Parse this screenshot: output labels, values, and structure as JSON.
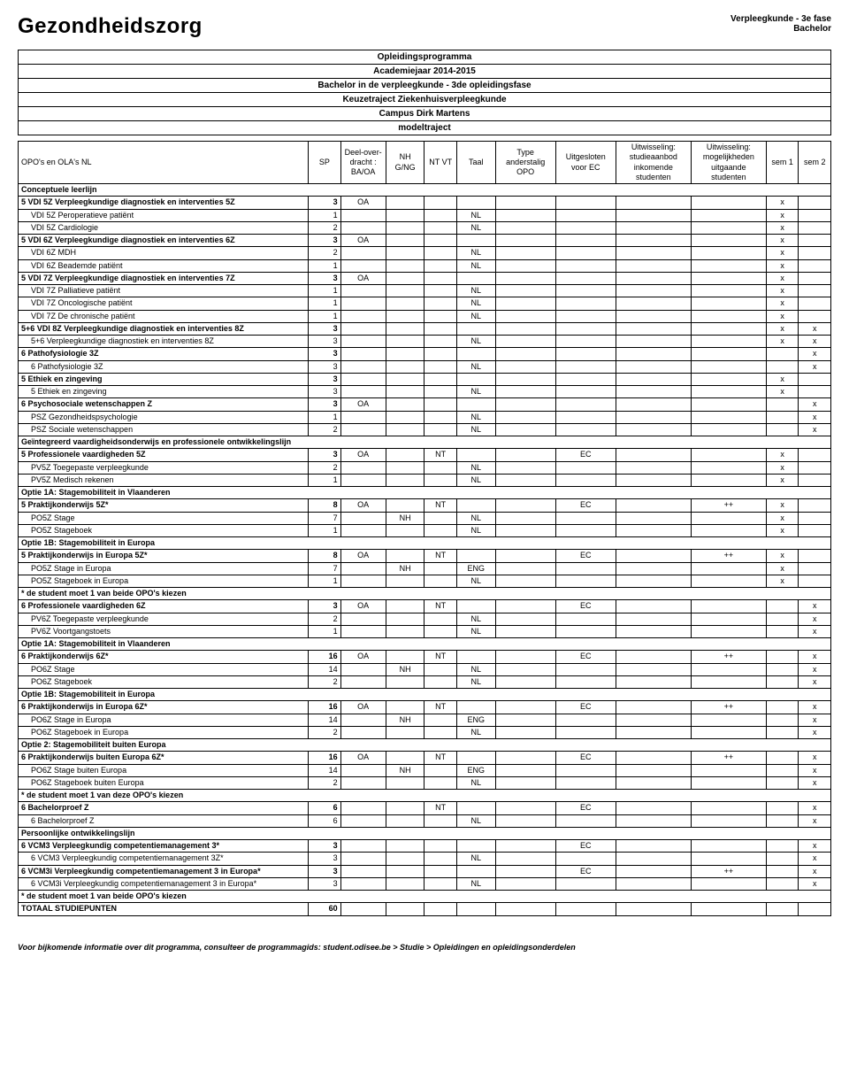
{
  "header": {
    "title": "Gezondheidszorg",
    "subtitle1": "Verpleegkunde - 3e fase",
    "subtitle2": "Bachelor"
  },
  "program": [
    "Opleidingsprogramma",
    "Academiejaar 2014-2015",
    "Bachelor in de verpleegkunde - 3de opleidingsfase",
    "Keuzetraject Ziekenhuisverpleegkunde",
    "Campus Dirk Martens",
    "modeltraject"
  ],
  "columns": [
    "OPO's en OLA's NL",
    "SP",
    "Deel-over-dracht : BA/OA",
    "NH G/NG",
    "NT VT",
    "Taal",
    "Type anderstalig OPO",
    "Uitgesloten voor EC",
    "Uitwisseling: studieaanbod inkomende studenten",
    "Uitwisseling: mogelijkheden uitgaande studenten",
    "sem 1",
    "sem 2"
  ],
  "rows": [
    {
      "type": "section",
      "name": "Conceptuele leerlijn"
    },
    {
      "type": "parent",
      "name": "5 VDI 5Z Verpleegkundige diagnostiek en interventies 5Z",
      "sp": "3",
      "baoa": "OA",
      "s1": "x"
    },
    {
      "type": "child",
      "name": "VDI 5Z Peroperatieve patiënt",
      "sp": "1",
      "taal": "NL",
      "s1": "x"
    },
    {
      "type": "child",
      "name": "VDI 5Z Cardiologie",
      "sp": "2",
      "taal": "NL",
      "s1": "x"
    },
    {
      "type": "parent",
      "name": "5 VDI 6Z Verpleegkundige diagnostiek en interventies 6Z",
      "sp": "3",
      "baoa": "OA",
      "s1": "x"
    },
    {
      "type": "child",
      "name": "VDI 6Z MDH",
      "sp": "2",
      "taal": "NL",
      "s1": "x"
    },
    {
      "type": "child",
      "name": "VDI 6Z Beademde patiënt",
      "sp": "1",
      "taal": "NL",
      "s1": "x"
    },
    {
      "type": "parent",
      "name": "5 VDI 7Z Verpleegkundige diagnostiek en interventies 7Z",
      "sp": "3",
      "baoa": "OA",
      "s1": "x"
    },
    {
      "type": "child",
      "name": "VDI 7Z Palliatieve patiënt",
      "sp": "1",
      "taal": "NL",
      "s1": "x"
    },
    {
      "type": "child",
      "name": "VDI 7Z Oncologische patiënt",
      "sp": "1",
      "taal": "NL",
      "s1": "x"
    },
    {
      "type": "child",
      "name": "VDI 7Z De chronische patiënt",
      "sp": "1",
      "taal": "NL",
      "s1": "x"
    },
    {
      "type": "parent",
      "name": "5+6 VDI 8Z Verpleegkundige diagnostiek en interventies 8Z",
      "sp": "3",
      "s1": "x",
      "s2": "x"
    },
    {
      "type": "child",
      "name": "5+6 Verpleegkundige diagnostiek en interventies 8Z",
      "sp": "3",
      "taal": "NL",
      "s1": "x",
      "s2": "x"
    },
    {
      "type": "parent",
      "name": "6 Pathofysiologie 3Z",
      "sp": "3",
      "s2": "x"
    },
    {
      "type": "child",
      "name": "6 Pathofysiologie 3Z",
      "sp": "3",
      "taal": "NL",
      "s2": "x"
    },
    {
      "type": "parent",
      "name": "5 Ethiek en zingeving",
      "sp": "3",
      "s1": "x"
    },
    {
      "type": "child",
      "name": "5 Ethiek en zingeving",
      "sp": "3",
      "taal": "NL",
      "s1": "x"
    },
    {
      "type": "parent",
      "name": "6 Psychosociale wetenschappen Z",
      "sp": "3",
      "baoa": "OA",
      "s2": "x"
    },
    {
      "type": "child",
      "name": "PSZ Gezondheidspsychologie",
      "sp": "1",
      "taal": "NL",
      "s2": "x"
    },
    {
      "type": "child",
      "name": "PSZ Sociale wetenschappen",
      "sp": "2",
      "taal": "NL",
      "s2": "x"
    },
    {
      "type": "section",
      "name": "Geïntegreerd vaardigheidsonderwijs en professionele ontwikkelingslijn"
    },
    {
      "type": "parent",
      "name": "5 Professionele vaardigheden 5Z",
      "sp": "3",
      "baoa": "OA",
      "nt": "NT",
      "ec": "EC",
      "s1": "x"
    },
    {
      "type": "child",
      "name": "PV5Z Toegepaste verpleegkunde",
      "sp": "2",
      "taal": "NL",
      "s1": "x"
    },
    {
      "type": "child",
      "name": "PV5Z Medisch rekenen",
      "sp": "1",
      "taal": "NL",
      "s1": "x"
    },
    {
      "type": "section",
      "name": "Optie 1A: Stagemobiliteit in Vlaanderen"
    },
    {
      "type": "parent",
      "name": "5 Praktijkonderwijs 5Z*",
      "sp": "8",
      "baoa": "OA",
      "nt": "NT",
      "ec": "EC",
      "out": "++",
      "s1": "x"
    },
    {
      "type": "child",
      "name": "PO5Z Stage",
      "sp": "7",
      "nh": "NH",
      "taal": "NL",
      "s1": "x"
    },
    {
      "type": "child",
      "name": "PO5Z Stageboek",
      "sp": "1",
      "taal": "NL",
      "s1": "x"
    },
    {
      "type": "section",
      "name": "Optie 1B: Stagemobiliteit in Europa"
    },
    {
      "type": "parent",
      "name": "5 Praktijkonderwijs in Europa 5Z*",
      "sp": "8",
      "baoa": "OA",
      "nt": "NT",
      "ec": "EC",
      "out": "++",
      "s1": "x"
    },
    {
      "type": "child",
      "name": "PO5Z Stage in Europa",
      "sp": "7",
      "nh": "NH",
      "taal": "ENG",
      "s1": "x"
    },
    {
      "type": "child",
      "name": "PO5Z Stageboek in Europa",
      "sp": "1",
      "taal": "NL",
      "s1": "x"
    },
    {
      "type": "section",
      "name": "* de student moet 1 van beide OPO's kiezen"
    },
    {
      "type": "parent",
      "name": "6 Professionele vaardigheden 6Z",
      "sp": "3",
      "baoa": "OA",
      "nt": "NT",
      "ec": "EC",
      "s2": "x"
    },
    {
      "type": "child",
      "name": "PV6Z Toegepaste verpleegkunde",
      "sp": "2",
      "taal": "NL",
      "s2": "x"
    },
    {
      "type": "child",
      "name": "PV6Z Voortgangstoets",
      "sp": "1",
      "taal": "NL",
      "s2": "x"
    },
    {
      "type": "section",
      "name": "Optie 1A: Stagemobiliteit in Vlaanderen"
    },
    {
      "type": "parent",
      "name": "6 Praktijkonderwijs 6Z*",
      "sp": "16",
      "baoa": "OA",
      "nt": "NT",
      "ec": "EC",
      "out": "++",
      "s2": "x"
    },
    {
      "type": "child",
      "name": "PO6Z Stage",
      "sp": "14",
      "nh": "NH",
      "taal": "NL",
      "s2": "x"
    },
    {
      "type": "child",
      "name": "PO6Z Stageboek",
      "sp": "2",
      "taal": "NL",
      "s2": "x"
    },
    {
      "type": "section",
      "name": "Optie 1B: Stagemobiliteit in Europa"
    },
    {
      "type": "parent",
      "name": "6 Praktijkonderwijs in Europa 6Z*",
      "sp": "16",
      "baoa": "OA",
      "nt": "NT",
      "ec": "EC",
      "out": "++",
      "s2": "x"
    },
    {
      "type": "child",
      "name": "PO6Z Stage in Europa",
      "sp": "14",
      "nh": "NH",
      "taal": "ENG",
      "s2": "x"
    },
    {
      "type": "child",
      "name": "PO6Z Stageboek in Europa",
      "sp": "2",
      "taal": "NL",
      "s2": "x"
    },
    {
      "type": "section",
      "name": "Optie 2: Stagemobiliteit buiten Europa"
    },
    {
      "type": "parent",
      "name": "6 Praktijkonderwijs buiten Europa 6Z*",
      "sp": "16",
      "baoa": "OA",
      "nt": "NT",
      "ec": "EC",
      "out": "++",
      "s2": "x"
    },
    {
      "type": "child",
      "name": "PO6Z Stage buiten Europa",
      "sp": "14",
      "nh": "NH",
      "taal": "ENG",
      "s2": "x"
    },
    {
      "type": "child",
      "name": "PO6Z Stageboek buiten Europa",
      "sp": "2",
      "taal": "NL",
      "s2": "x"
    },
    {
      "type": "section",
      "name": "* de student moet 1 van deze OPO's kiezen"
    },
    {
      "type": "parent",
      "name": "6 Bachelorproef Z",
      "sp": "6",
      "nt": "NT",
      "ec": "EC",
      "s2": "x"
    },
    {
      "type": "child",
      "name": "6 Bachelorproef Z",
      "sp": "6",
      "taal": "NL",
      "s2": "x"
    },
    {
      "type": "section",
      "name": "Persoonlijke ontwikkelingslijn"
    },
    {
      "type": "parent",
      "name": "6 VCM3 Verpleegkundig competentiemanagement 3*",
      "sp": "3",
      "ec": "EC",
      "s2": "x"
    },
    {
      "type": "child",
      "name": "6 VCM3 Verpleegkundig competentiemanagement 3Z*",
      "sp": "3",
      "taal": "NL",
      "s2": "x"
    },
    {
      "type": "parent",
      "name": "6 VCM3i Verpleegkundig competentiemanagement 3 in Europa*",
      "sp": "3",
      "ec": "EC",
      "out": "++",
      "s2": "x"
    },
    {
      "type": "child",
      "name": "6 VCM3i Verpleegkundig competentiemanagement 3 in Europa*",
      "sp": "3",
      "taal": "NL",
      "s2": "x"
    },
    {
      "type": "section",
      "name": "* de student moet 1 van beide OPO's kiezen"
    },
    {
      "type": "total",
      "name": "TOTAAL STUDIEPUNTEN",
      "sp": "60"
    }
  ],
  "footer": "Voor bijkomende informatie over dit programma, consulteer de programmagids: student.odisee.be > Studie > Opleidingen en opleidingsonderdelen"
}
